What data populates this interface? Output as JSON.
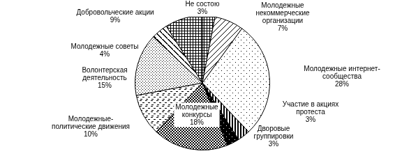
{
  "chart_data": {
    "type": "pie",
    "categories": [
      "Не состою",
      "Молодежные некоммерческие организации",
      "Молодежные интернет-сообщества",
      "Участие в акциях протеста",
      "Дворовые группировки",
      "Молодежные конкурсы",
      "Молодежные-политические движения",
      "Волонтерская деятельность",
      "Молодежные советы",
      "Добровольческие акции"
    ],
    "values": [
      3,
      7,
      28,
      3,
      3,
      18,
      10,
      15,
      4,
      9
    ],
    "value_labels": [
      "3%",
      "7%",
      "28%",
      "3%",
      "3%",
      "18%",
      "10%",
      "15%",
      "4%",
      "9%"
    ],
    "colors": [
      "#000000",
      "#000000",
      "#000000",
      "#000000",
      "#000000",
      "#000000",
      "#000000",
      "#000000",
      "#000000",
      "#000000"
    ],
    "data_labels": true
  }
}
